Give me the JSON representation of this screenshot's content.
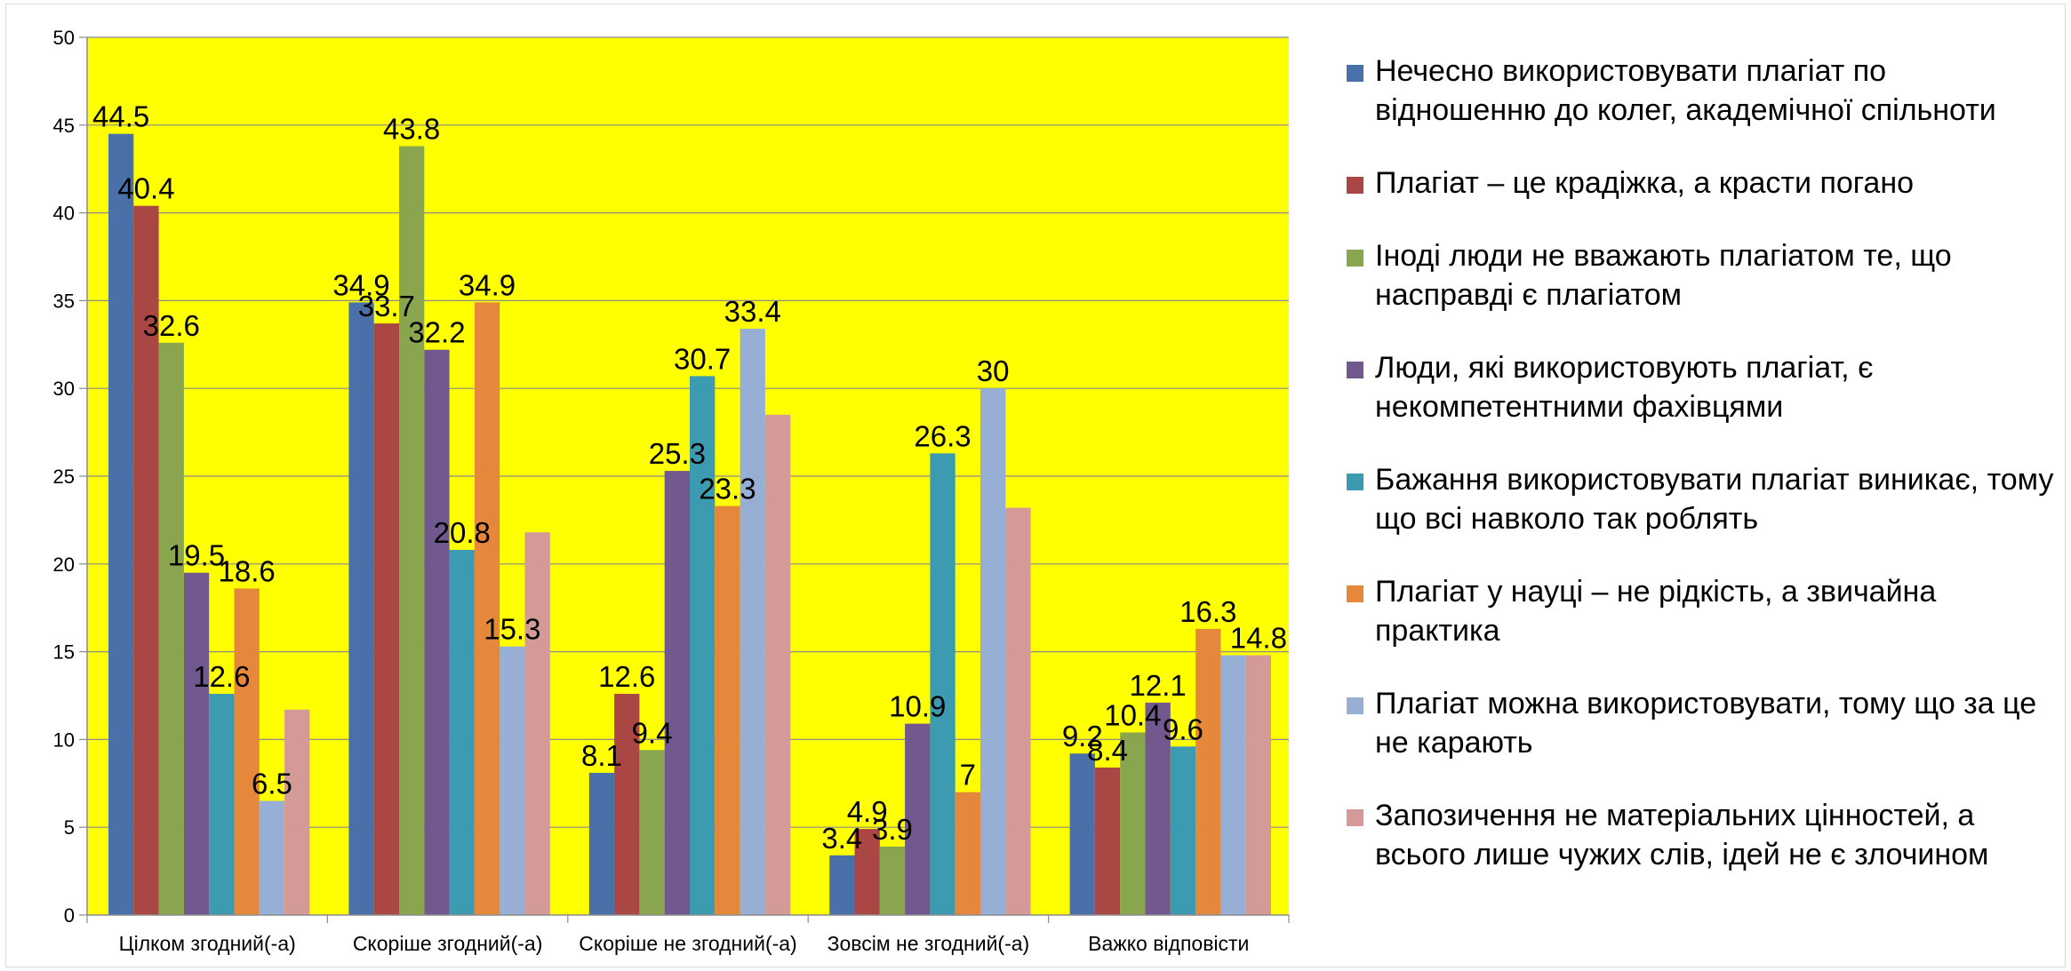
{
  "chart_data": {
    "type": "bar",
    "categories": [
      "Цілком згодний(-а)",
      "Скоріше згодний(-а)",
      "Скоріше не згодний(-а)",
      "Зовсім не згодний(-а)",
      "Важко відповісти"
    ],
    "ylim": [
      0,
      50
    ],
    "yticks": [
      "0",
      "5",
      "10",
      "15",
      "20",
      "25",
      "30",
      "35",
      "40",
      "45",
      "50"
    ],
    "grid": true,
    "plot_background": "#FFFF00",
    "legend_position": "right",
    "series": [
      {
        "name": "Нечесно використовувати плагіат по відношенню до колег, академічної спільноти",
        "color": "#4A70A9",
        "values": [
          44.5,
          34.9,
          8.1,
          3.4,
          9.2
        ],
        "labels": [
          "44.5",
          "34.9",
          "8.1",
          "3.4",
          "9.2"
        ]
      },
      {
        "name": "Плагіат – це крадіжка, а красти погано",
        "color": "#AA4643",
        "values": [
          40.4,
          33.7,
          12.6,
          4.9,
          8.4
        ],
        "labels": [
          "40.4",
          "33.7",
          "12.6",
          "4.9",
          "8.4"
        ]
      },
      {
        "name": "Іноді люди не вважають плагіатом те, що насправді є плагіатом",
        "color": "#89A54E",
        "values": [
          32.6,
          43.8,
          9.4,
          3.9,
          10.4
        ],
        "labels": [
          "32.6",
          "43.8",
          "9.4",
          "3.9",
          "10.4"
        ]
      },
      {
        "name": "Люди, які використовують плагіат, є некомпетентними фахівцями",
        "color": "#71588F",
        "values": [
          19.5,
          32.2,
          25.3,
          10.9,
          12.1
        ],
        "labels": [
          "19.5",
          "32.2",
          "25.3",
          "10.9",
          "12.1"
        ]
      },
      {
        "name": "Бажання використовувати плагіат виникає, тому що всі навколо так роблять",
        "color": "#3C9BB0",
        "values": [
          12.6,
          20.8,
          30.7,
          26.3,
          9.6
        ],
        "labels": [
          "12.6",
          "20.8",
          "30.7",
          "26.3",
          "9.6"
        ]
      },
      {
        "name": "Плагіат у науці – не рідкість, а звичайна практика",
        "color": "#E5883C",
        "values": [
          18.6,
          34.9,
          23.3,
          7,
          16.3
        ],
        "labels": [
          "18.6",
          "34.9",
          "23.3",
          "7",
          "16.3"
        ]
      },
      {
        "name": "Плагіат можна використовувати, тому що за це не карають",
        "color": "#97AFD5",
        "values": [
          6.5,
          15.3,
          33.4,
          30,
          14.8
        ],
        "labels": [
          "6.5",
          "15.3",
          "33.4",
          "30",
          ""
        ]
      },
      {
        "name": "Запозичення не матеріальних цінностей, а всього лише чужих слів, ідей не є злочином",
        "color": "#D49A98",
        "values": [
          11.7,
          21.8,
          28.5,
          23.2,
          14.8
        ],
        "labels": [
          "",
          "",
          "",
          "",
          "14.8"
        ]
      }
    ]
  }
}
